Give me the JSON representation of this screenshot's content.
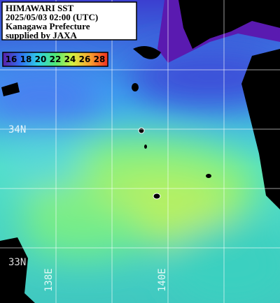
{
  "title_box": {
    "lines": [
      "HIMAWARI SST",
      "2025/05/03 02:00 (UTC)",
      "Kanagawa Prefecture",
      "supplied by JAXA"
    ]
  },
  "colorbar": {
    "ticks": [
      16,
      18,
      20,
      22,
      24,
      26,
      28
    ],
    "colors": [
      "#5a1fa8",
      "#2f6ef0",
      "#2fd0e8",
      "#4fe878",
      "#d8f040",
      "#f8a030",
      "#f03020"
    ]
  },
  "grid": {
    "lat_labels": [
      "34N",
      "33N"
    ],
    "lon_labels": [
      "138E",
      "140E"
    ]
  }
}
